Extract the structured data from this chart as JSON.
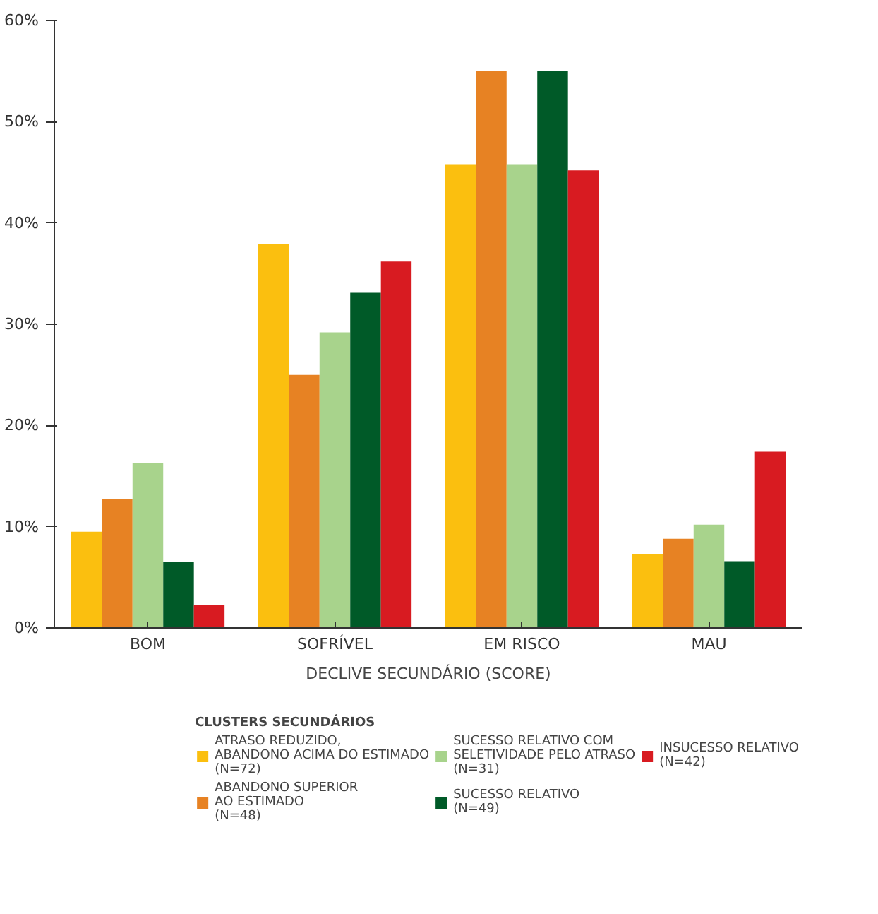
{
  "chart_data": {
    "type": "bar",
    "xlabel": "DECLIVE SECUNDÁRIO (SCORE)",
    "legend_title": "CLUSTERS SECUNDÁRIOS",
    "categories": [
      "BOM",
      "SOFRÍVEL",
      "EM RISCO",
      "MAU"
    ],
    "series": [
      {
        "name": "ATRASO REDUZIDO,\nABANDONO ACIMA DO ESTIMADO\n(N=72)",
        "color": "#fbbf0f",
        "values": [
          9.5,
          37.9,
          45.8,
          7.3
        ]
      },
      {
        "name": "ABANDONO SUPERIOR\nAO ESTIMADO\n(N=48)",
        "color": "#e78223",
        "values": [
          12.7,
          25.0,
          55.0,
          8.8
        ]
      },
      {
        "name": "SUCESSO RELATIVO COM\nSELETIVIDADE PELO ATRASO\n(N=31)",
        "color": "#a8d38c",
        "values": [
          16.3,
          29.2,
          45.8,
          10.2
        ]
      },
      {
        "name": "SUCESSO RELATIVO\n(N=49)",
        "color": "#005a28",
        "values": [
          6.5,
          33.1,
          55.0,
          6.6
        ]
      },
      {
        "name": "INSUCESSO RELATIVO\n(N=42)",
        "color": "#d81b21",
        "values": [
          2.3,
          36.2,
          45.2,
          17.4
        ]
      }
    ],
    "ylim": [
      0,
      60
    ],
    "yticks": [
      {
        "value": 0,
        "label": "0%"
      },
      {
        "value": 10,
        "label": "10%"
      },
      {
        "value": 20,
        "label": "20%"
      },
      {
        "value": 30,
        "label": "30%"
      },
      {
        "value": 40,
        "label": "40%"
      },
      {
        "value": 50,
        "label": "50%"
      },
      {
        "value": 60,
        "label": "60%"
      }
    ],
    "grid": false,
    "legend": "bottom"
  }
}
